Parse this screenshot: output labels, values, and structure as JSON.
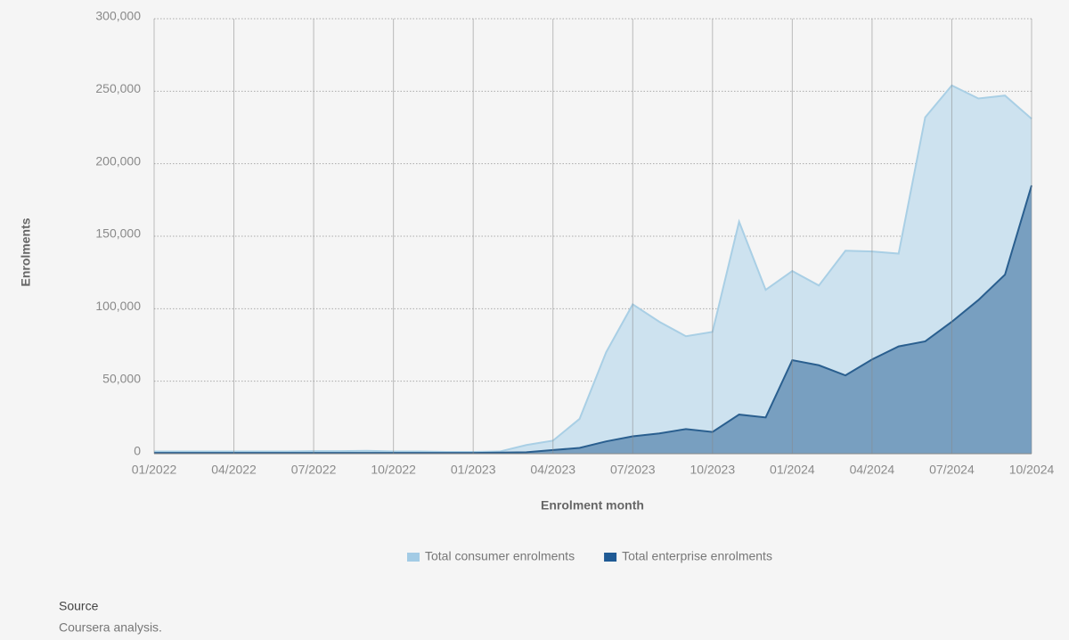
{
  "chart_data": {
    "type": "area",
    "x_label": "Enrolment month",
    "y_label": "Enrolments",
    "categories": [
      "01/2022",
      null,
      null,
      "04/2022",
      null,
      null,
      "07/2022",
      null,
      null,
      "10/2022",
      null,
      null,
      "01/2023",
      null,
      null,
      "04/2023",
      null,
      null,
      "07/2023",
      null,
      null,
      "10/2023",
      null,
      null,
      "01/2024",
      null,
      null,
      "04/2024",
      null,
      null,
      "07/2024",
      null,
      null,
      "10/2024"
    ],
    "series": [
      {
        "name": "Total consumer enrolments",
        "color": "#a3cbe5",
        "fill": "#cde2ef",
        "line": "#a9cfe5",
        "values": [
          1500,
          1500,
          1500,
          1500,
          1500,
          1500,
          1800,
          1800,
          2000,
          1500,
          1500,
          1200,
          1200,
          1500,
          6000,
          9000,
          24000,
          70000,
          103000,
          91000,
          81000,
          84000,
          160000,
          113000,
          126000,
          116000,
          140000,
          139500,
          138000,
          232000,
          254000,
          245000,
          247000,
          231000
        ]
      },
      {
        "name": "Total enterprise enrolments",
        "color": "#1f5a94",
        "fill": "#789fc0",
        "line": "#2a5f8f",
        "values": [
          500,
          500,
          500,
          500,
          500,
          500,
          500,
          500,
          500,
          500,
          500,
          500,
          500,
          800,
          1000,
          2500,
          4000,
          8500,
          12000,
          14000,
          17000,
          15000,
          27000,
          25000,
          64500,
          61000,
          54000,
          65000,
          74000,
          77500,
          91000,
          106000,
          123500,
          185000
        ]
      }
    ],
    "ylim": [
      0,
      300000
    ],
    "yticks": [
      0,
      {
        "value": 50000,
        "label": "50,000"
      },
      {
        "value": 100000,
        "label": "100,000"
      },
      {
        "value": 150000,
        "label": "150,000"
      },
      {
        "value": 200000,
        "label": "200,000"
      },
      {
        "value": 250000,
        "label": "250,000"
      },
      {
        "value": 300000,
        "label": "300,000"
      }
    ],
    "grid": true,
    "legend": "bottom",
    "source_heading": "Source",
    "source": "Coursera analysis."
  }
}
